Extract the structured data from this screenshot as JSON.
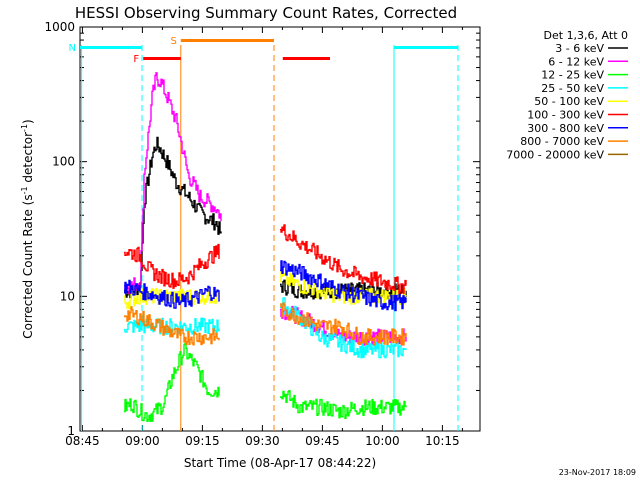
{
  "chart_data": {
    "type": "line",
    "title": "HESSI Observing Summary Count Rates, Corrected",
    "xlabel": "Start Time (08-Apr-17 08:44:22)",
    "ylabel": "Corrected Count Rate (s",
    "ylabel_sup1": "-1",
    "ylabel_mid": " detector",
    "ylabel_sup2": "-1",
    "ylabel_end": ")",
    "y_scale": "log",
    "ylim": [
      1,
      1000
    ],
    "xlim_minutes": [
      0,
      100
    ],
    "x_ticks": [
      {
        "label": "08:45",
        "m": 0.6
      },
      {
        "label": "09:00",
        "m": 15.6
      },
      {
        "label": "09:15",
        "m": 30.6
      },
      {
        "label": "09:30",
        "m": 45.6
      },
      {
        "label": "09:45",
        "m": 60.6
      },
      {
        "label": "10:00",
        "m": 75.6
      },
      {
        "label": "10:15",
        "m": 90.6
      }
    ],
    "y_ticks": [
      {
        "label": "1",
        "v": 1
      },
      {
        "label": "10",
        "v": 10
      },
      {
        "label": "100",
        "v": 100
      },
      {
        "label": "1000",
        "v": 1000
      }
    ],
    "legend_title": "Det 1,3,6, Att 0",
    "legend_placement": "right",
    "timestamp": "23-Nov-2017 18:09",
    "series": [
      {
        "name": "3 - 6 keV",
        "color": "#000000",
        "values": [
          [
            11,
            11
          ],
          [
            13,
            11
          ],
          [
            15,
            12
          ],
          [
            16,
            50
          ],
          [
            18,
            110
          ],
          [
            19,
            135
          ],
          [
            20,
            125
          ],
          [
            22,
            95
          ],
          [
            24,
            70
          ],
          [
            27,
            55
          ],
          [
            30,
            42
          ],
          [
            32,
            38
          ],
          [
            34,
            35
          ],
          [
            35,
            30
          ],
          [
            35.5,
            25
          ],
          [
            50,
            12
          ],
          [
            55,
            11
          ],
          [
            60,
            11
          ],
          [
            65,
            11
          ],
          [
            70,
            11
          ],
          [
            75,
            11
          ],
          [
            80,
            11
          ],
          [
            81.5,
            11
          ]
        ]
      },
      {
        "name": "6 - 12 keV",
        "color": "#ff00ff",
        "values": [
          [
            11,
            12
          ],
          [
            13,
            12
          ],
          [
            15,
            13
          ],
          [
            16,
            80
          ],
          [
            18,
            300
          ],
          [
            19,
            420
          ],
          [
            20,
            400
          ],
          [
            22,
            290
          ],
          [
            24,
            200
          ],
          [
            25,
            150
          ],
          [
            27,
            80
          ],
          [
            30,
            55
          ],
          [
            32,
            50
          ],
          [
            34,
            45
          ],
          [
            35,
            40
          ],
          [
            35.5,
            30
          ],
          [
            50,
            8
          ],
          [
            55,
            7
          ],
          [
            60,
            6
          ],
          [
            65,
            5
          ],
          [
            70,
            5
          ],
          [
            75,
            5
          ],
          [
            80,
            5
          ],
          [
            81.5,
            5
          ]
        ]
      },
      {
        "name": "12 - 25 keV",
        "color": "#00ff00",
        "values": [
          [
            11,
            1.5
          ],
          [
            13,
            1.6
          ],
          [
            15,
            1.4
          ],
          [
            17,
            1.3
          ],
          [
            19,
            1.4
          ],
          [
            21,
            1.6
          ],
          [
            23,
            2.5
          ],
          [
            26,
            4
          ],
          [
            29,
            3
          ],
          [
            32,
            2
          ],
          [
            35,
            2
          ],
          [
            50,
            2
          ],
          [
            55,
            1.5
          ],
          [
            60,
            1.5
          ],
          [
            65,
            1.4
          ],
          [
            70,
            1.5
          ],
          [
            75,
            1.5
          ],
          [
            80,
            1.5
          ],
          [
            81.5,
            1.5
          ]
        ]
      },
      {
        "name": "25 - 50 keV",
        "color": "#00ffff",
        "values": [
          [
            11,
            6
          ],
          [
            15,
            6
          ],
          [
            20,
            6
          ],
          [
            25,
            6
          ],
          [
            30,
            6
          ],
          [
            35,
            6
          ],
          [
            50,
            9
          ],
          [
            55,
            7
          ],
          [
            60,
            5
          ],
          [
            65,
            4.5
          ],
          [
            70,
            4
          ],
          [
            75,
            4
          ],
          [
            80,
            4
          ],
          [
            81.5,
            4
          ]
        ]
      },
      {
        "name": "50 - 100 keV",
        "color": "#ffff00",
        "values": [
          [
            11,
            9
          ],
          [
            15,
            10
          ],
          [
            20,
            10
          ],
          [
            25,
            10
          ],
          [
            30,
            10
          ],
          [
            35,
            10
          ],
          [
            50,
            14
          ],
          [
            55,
            12
          ],
          [
            60,
            11
          ],
          [
            65,
            10
          ],
          [
            70,
            10
          ],
          [
            75,
            10
          ],
          [
            80,
            10
          ],
          [
            81.5,
            10
          ]
        ]
      },
      {
        "name": "100 - 300 keV",
        "color": "#ff0000",
        "values": [
          [
            11,
            22
          ],
          [
            13,
            21
          ],
          [
            15,
            20
          ],
          [
            17,
            16
          ],
          [
            20,
            14
          ],
          [
            24,
            13
          ],
          [
            27,
            14
          ],
          [
            30,
            17
          ],
          [
            32,
            19
          ],
          [
            35,
            22
          ],
          [
            50,
            32
          ],
          [
            55,
            25
          ],
          [
            60,
            20
          ],
          [
            65,
            16
          ],
          [
            70,
            14
          ],
          [
            75,
            13
          ],
          [
            80,
            12
          ],
          [
            81.5,
            12
          ]
        ]
      },
      {
        "name": "300 - 800 keV",
        "color": "#0000ff",
        "values": [
          [
            11,
            12
          ],
          [
            15,
            11
          ],
          [
            20,
            10
          ],
          [
            25,
            9
          ],
          [
            30,
            10
          ],
          [
            32,
            11
          ],
          [
            35,
            10
          ],
          [
            50,
            17
          ],
          [
            55,
            15
          ],
          [
            60,
            13
          ],
          [
            65,
            11
          ],
          [
            70,
            10
          ],
          [
            75,
            9
          ],
          [
            80,
            9
          ],
          [
            81.5,
            9
          ]
        ]
      },
      {
        "name": "800 - 7000 keV",
        "color": "#ff8000",
        "values": [
          [
            11,
            7.5
          ],
          [
            15,
            7
          ],
          [
            20,
            6
          ],
          [
            25,
            5
          ],
          [
            30,
            5
          ],
          [
            35,
            5
          ],
          [
            50,
            8
          ],
          [
            55,
            7
          ],
          [
            60,
            6
          ],
          [
            65,
            6
          ],
          [
            70,
            5
          ],
          [
            75,
            5
          ],
          [
            80,
            5
          ],
          [
            81.5,
            5
          ]
        ]
      },
      {
        "name": "7000 - 20000 keV",
        "color": "#996600",
        "values": []
      }
    ],
    "flags": [
      {
        "label": "F",
        "color": "#ff0000",
        "m_start": 15.8,
        "m_end": 25.2
      },
      {
        "label": "",
        "color": "#ff0000",
        "m_start": 50.7,
        "m_end": 62.5
      },
      {
        "label": "N",
        "color": "#00ffff",
        "m_start": 0,
        "m_end": 15.5
      },
      {
        "label": "",
        "color": "#00ffff",
        "m_start": 78.5,
        "m_end": 94.5
      },
      {
        "label": "S",
        "color": "#ff8000",
        "m_start": 25.2,
        "m_end": 48.5
      }
    ]
  }
}
